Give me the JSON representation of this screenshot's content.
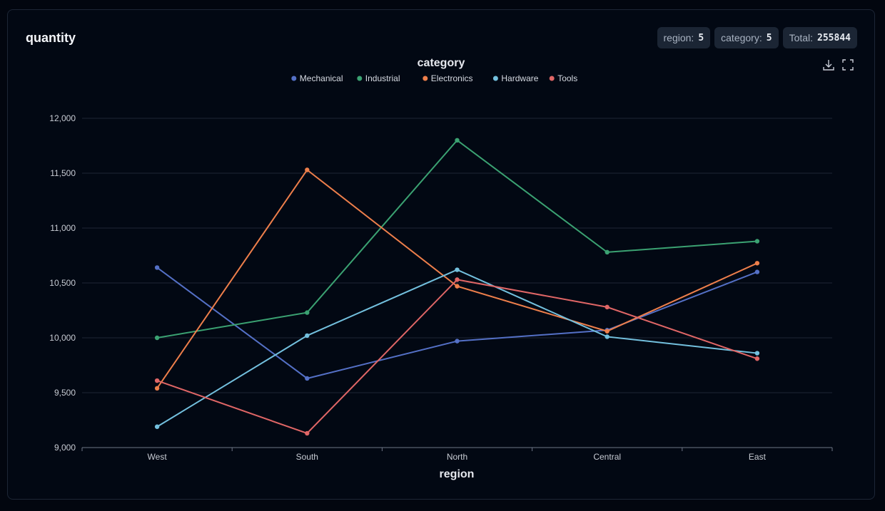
{
  "card": {
    "title": "quantity",
    "badges": [
      {
        "label": "region:",
        "value": "5"
      },
      {
        "label": "category:",
        "value": "5"
      },
      {
        "label": "Total:",
        "value": "255844"
      }
    ],
    "tools": [
      "download-icon",
      "fullscreen-icon"
    ]
  },
  "chart_data": {
    "type": "line",
    "title": "",
    "legend_title": "category",
    "legend_position": "top-center",
    "xlabel": "region",
    "ylabel": "",
    "categories": [
      "West",
      "South",
      "North",
      "Central",
      "East"
    ],
    "ylim": [
      9000,
      12000
    ],
    "yticks": [
      9000,
      9500,
      10000,
      10500,
      11000,
      11500,
      12000
    ],
    "ytick_labels": [
      "9,000",
      "9,500",
      "10,000",
      "10,500",
      "11,000",
      "11,500",
      "12,000"
    ],
    "grid": true,
    "series": [
      {
        "name": "Mechanical",
        "color": "#5470c6",
        "values": [
          10640,
          9630,
          9970,
          10070,
          10600
        ]
      },
      {
        "name": "Industrial",
        "color": "#3ba272",
        "values": [
          10000,
          10230,
          11800,
          10780,
          10880
        ]
      },
      {
        "name": "Electronics",
        "color": "#ee7f4b",
        "values": [
          9540,
          11530,
          10470,
          10060,
          10680
        ]
      },
      {
        "name": "Hardware",
        "color": "#73c0de",
        "values": [
          9190,
          10020,
          10620,
          10010,
          9860
        ]
      },
      {
        "name": "Tools",
        "color": "#e06666",
        "values": [
          9610,
          9130,
          10530,
          10280,
          9810
        ]
      }
    ]
  }
}
